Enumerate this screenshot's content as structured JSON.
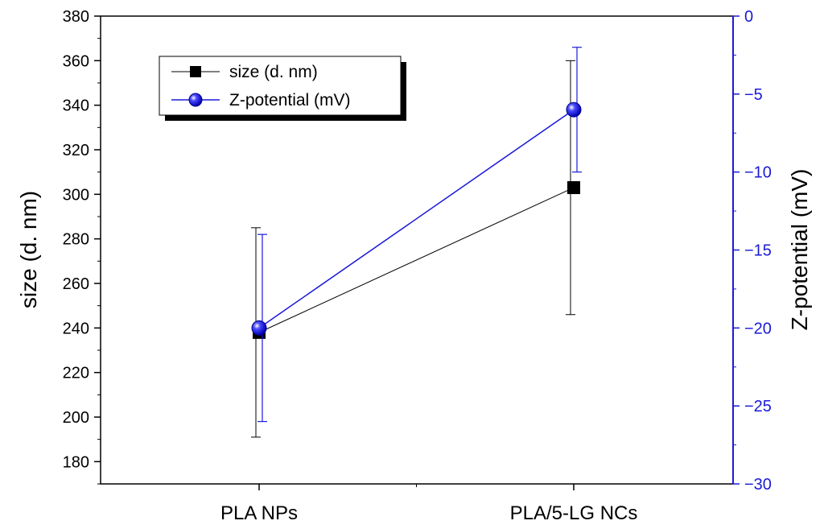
{
  "chart_data": {
    "type": "line",
    "categories": [
      "PLA NPs",
      "PLA/5-LG NCs"
    ],
    "xlabel": "",
    "ylabel": "size (d. nm)",
    "y2label": "Z-potential (mV)",
    "ylim": [
      170,
      380
    ],
    "y2lim": [
      -30,
      0
    ],
    "yticks": [
      "380",
      "360",
      "340",
      "320",
      "300",
      "280",
      "260",
      "240",
      "220",
      "200",
      "180"
    ],
    "y2ticks": [
      "0",
      "−5",
      "−10",
      "−15",
      "−20",
      "−25",
      "−30"
    ],
    "series": [
      {
        "name": "size (d. nm)",
        "axis": "left",
        "marker": "square",
        "color": "#000000",
        "values": [
          238,
          303
        ],
        "error_low": [
          191,
          246
        ],
        "error_high": [
          285,
          360
        ]
      },
      {
        "name": "Z-potential (mV)",
        "axis": "right",
        "marker": "circle",
        "color": "#1a1ad8",
        "values": [
          -20,
          -6
        ],
        "error_low": [
          -26,
          -10
        ],
        "error_high": [
          -14,
          -2
        ]
      }
    ],
    "legend_position": "top-left",
    "grid": false
  }
}
